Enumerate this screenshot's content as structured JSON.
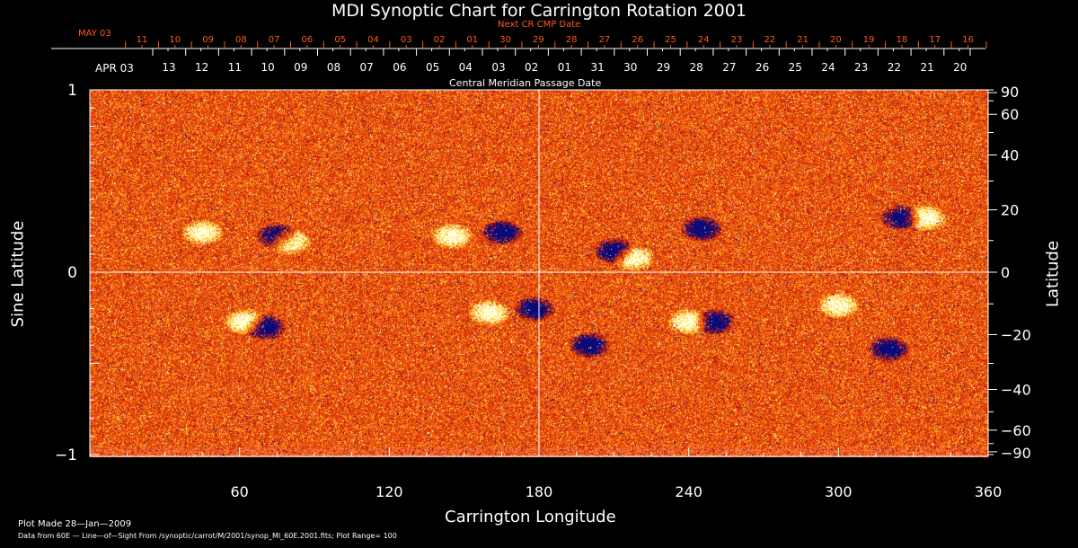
{
  "chart_data": {
    "type": "heatmap",
    "title": "MDI Synoptic Chart for Carrington Rotation 2001",
    "xlabel": "Carrington Longitude",
    "ylabel": "Sine Latitude",
    "y2label": "Latitude",
    "xlim": [
      0,
      360
    ],
    "ylim": [
      -1,
      1
    ],
    "xticks": [
      60,
      120,
      180,
      240,
      300,
      360
    ],
    "yticks": [
      {
        "v": 1,
        "label": "1"
      },
      {
        "v": 0,
        "label": "0"
      },
      {
        "v": -1,
        "label": "−1"
      }
    ],
    "lat_ticks": [
      90,
      60,
      40,
      20,
      0,
      -20,
      -40,
      -60,
      -90
    ],
    "top_axis_label": "Next CR CMP Date",
    "top_axis_start": "MAY 03",
    "top_axis_days": [
      "11",
      "10",
      "09",
      "08",
      "07",
      "06",
      "05",
      "04",
      "03",
      "02",
      "01",
      "30",
      "29",
      "28",
      "27",
      "26",
      "25",
      "24",
      "23",
      "22",
      "21",
      "20",
      "19",
      "18",
      "17",
      "16"
    ],
    "mid_axis_label": "Central Meridian Passage Date",
    "mid_axis_start": "APR 03",
    "mid_axis_days": [
      "13",
      "12",
      "11",
      "10",
      "09",
      "08",
      "07",
      "06",
      "05",
      "04",
      "03",
      "02",
      "01",
      "31",
      "30",
      "29",
      "28",
      "27",
      "26",
      "25",
      "24",
      "23",
      "22",
      "21",
      "20"
    ],
    "plot_range": 100,
    "colors": {
      "background": "#e8400a",
      "positive": "#ffffff",
      "negative": "#000080",
      "axis": "#ffffff",
      "top_axis": "#ff5a1a"
    }
  },
  "footer": {
    "made": "Plot Made 28—Jan—2009",
    "source": "Data from 60E — Line—of—Sight From /synoptic/carrot/M/2001/synop_Ml_60E.2001.fits; Plot Range=   100"
  }
}
